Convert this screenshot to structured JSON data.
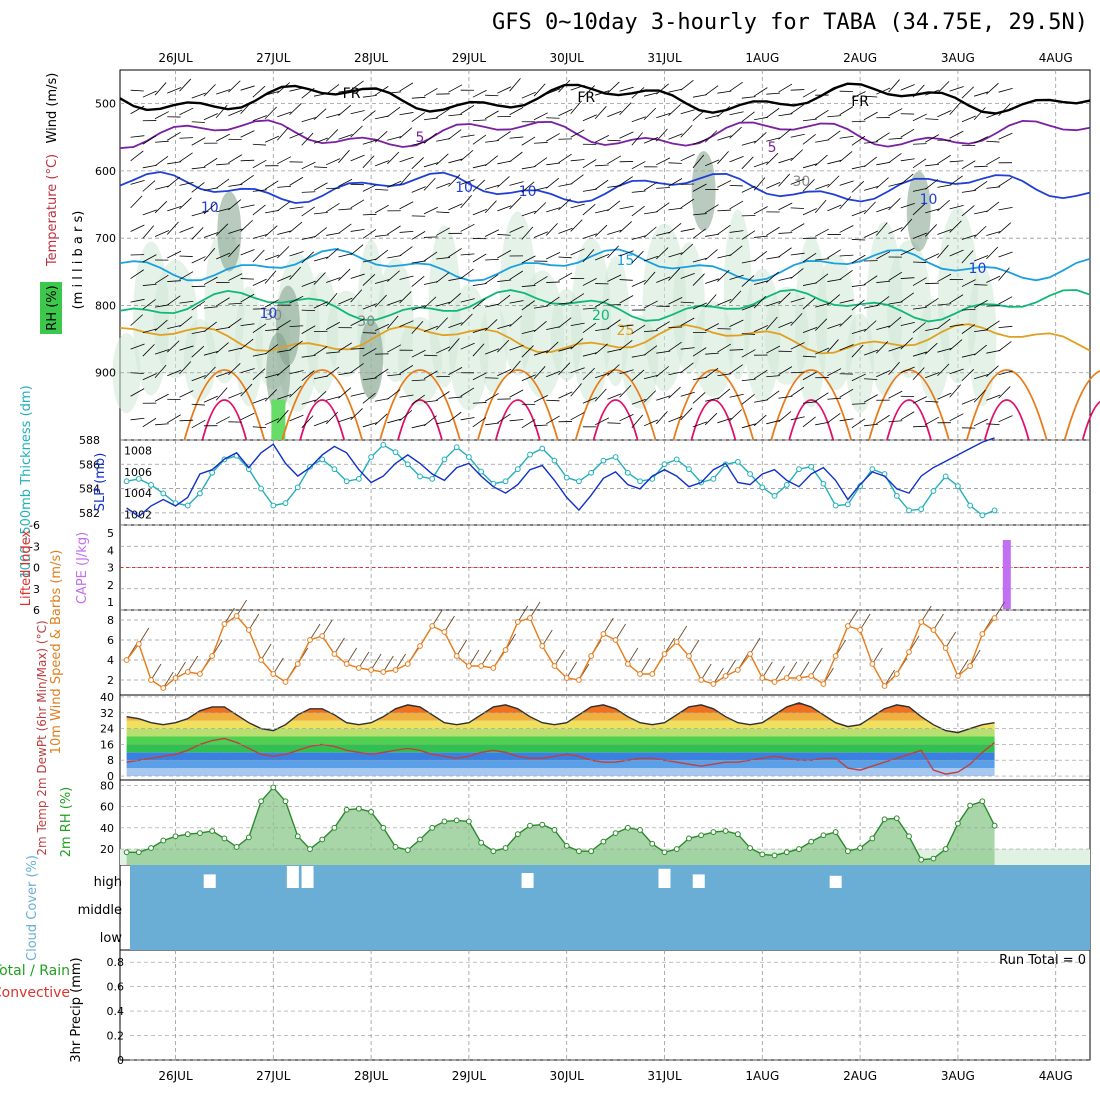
{
  "title": "GFS 0~10day 3-hourly for TABA (34.75E, 29.5N)",
  "dates": [
    "26JUL",
    "27JUL",
    "28JUL",
    "29JUL",
    "30JUL",
    "31JUL",
    "1AUG",
    "2AUG",
    "3AUG",
    "4AUG"
  ],
  "colors": {
    "wind_dark": "#000000",
    "purple": "#7a1fa2",
    "blue": "#1f3fd6",
    "cyan": "#1aa0e0",
    "green": "#10b878",
    "amber": "#e0a020",
    "orange": "#e87c1a",
    "magenta": "#e0106a",
    "thickness": "#22b0b8",
    "slp": "#1030c8",
    "cape": "#c070f0",
    "cloud": "#6aaed6",
    "rh2m": "#46c846"
  },
  "chart_data": [
    {
      "panel": "upper-air",
      "type": "contour",
      "ylabel_parts": {
        "wind": "Wind (m/s)",
        "temperature": "Temperature (°C)",
        "rh": "RH (%)",
        "axis": "(m i l l i b a r s)"
      },
      "yticks": [
        "500",
        "600",
        "700",
        "800",
        "900"
      ],
      "ylim": [
        1000,
        450
      ],
      "contour_labels": [
        "FR",
        "FR",
        "FR",
        "5",
        "5",
        "10",
        "10",
        "10",
        "15",
        "20",
        "25",
        "10",
        "30",
        "30",
        "30",
        "10",
        "10"
      ],
      "isotherms": [
        {
          "label": "FR",
          "level": 492
        },
        {
          "label": "5",
          "level": 545
        },
        {
          "label": "10",
          "level": 625
        },
        {
          "label": "15",
          "level": 740
        },
        {
          "label": "20",
          "level": 800
        },
        {
          "label": "25",
          "level": 850
        }
      ]
    },
    {
      "panel": "thickness-slp",
      "type": "line",
      "ylabel_left": "1000~500mb Thickness (dm)",
      "ylabel_right": "SLP (mb)",
      "yticks_left": [
        "588",
        "586",
        "584",
        "582"
      ],
      "yticks_right": [
        "1008",
        "1006",
        "1004",
        "1002"
      ],
      "ylim_left": [
        581,
        588
      ],
      "ylim_right": [
        1001,
        1009
      ],
      "series": [
        {
          "name": "1000~500mb Thickness (dm)",
          "values": [
            584.6,
            584.8,
            584.3,
            583.6,
            582.8,
            582.6,
            583.6,
            585.3,
            586.4,
            586.7,
            585.6,
            584.0,
            582.6,
            582.8,
            584.1,
            585.8,
            586.4,
            585.6,
            584.6,
            584.8,
            586.6,
            587.6,
            587.0,
            586.0,
            585.0,
            584.8,
            586.4,
            587.4,
            586.6,
            585.4,
            584.4,
            584.6,
            585.6,
            586.8,
            587.3,
            586.3,
            584.9,
            584.6,
            585.3,
            586.3,
            586.6,
            585.3,
            584.6,
            584.8,
            586.0,
            586.4,
            585.6,
            584.5,
            584.8,
            586.0,
            586.2,
            585.2,
            584.1,
            583.4,
            584.3,
            585.6,
            585.8,
            584.4,
            582.6,
            582.7,
            584.2,
            585.6,
            585.2,
            583.4,
            582.2,
            582.3,
            583.8,
            585.0,
            584.2,
            582.6,
            581.8,
            582.2
          ]
        },
        {
          "name": "SLP (mb)",
          "values": [
            1002.6,
            1001.8,
            1002.8,
            1003.4,
            1002.8,
            1003.6,
            1005.8,
            1006.2,
            1007.2,
            1007.8,
            1006.4,
            1007.8,
            1008.6,
            1006.8,
            1005.6,
            1006.4,
            1007.6,
            1008.4,
            1007.8,
            1006.2,
            1005.0,
            1005.6,
            1006.8,
            1007.6,
            1006.8,
            1005.8,
            1005.2,
            1006.4,
            1006.8,
            1005.6,
            1004.6,
            1004.0,
            1004.8,
            1006.2,
            1006.6,
            1005.2,
            1003.6,
            1002.4,
            1003.8,
            1005.4,
            1006.0,
            1004.8,
            1004.4,
            1005.6,
            1006.2,
            1005.6,
            1004.6,
            1005.0,
            1006.2,
            1006.8,
            1005.0,
            1004.8,
            1005.8,
            1006.2,
            1005.2,
            1004.6,
            1005.8,
            1006.4,
            1005.2,
            1003.4,
            1004.8,
            1006.0,
            1005.6,
            1004.4,
            1004.0,
            1005.6,
            1006.4,
            1007.0,
            1007.6,
            1008.2,
            1008.8,
            1009.2
          ]
        }
      ]
    },
    {
      "panel": "stability",
      "type": "bar",
      "ylabel_left": "Lifted Index",
      "ylabel_right": "CAPE (J/kg)",
      "yticks_left": [
        "-6",
        "-3",
        "0",
        "3",
        "6"
      ],
      "yticks_right": [
        "5",
        "4",
        "3",
        "2",
        "1"
      ],
      "ylim_left": [
        6,
        -6
      ],
      "cape_bars": [
        {
          "day": 8.5,
          "value": 5
        }
      ],
      "reference_line": 0
    },
    {
      "panel": "wind10m",
      "type": "line",
      "ylabel": "10m Wind Speed & Barbs (m/s)",
      "yticks": [
        "8",
        "6",
        "4",
        "2"
      ],
      "ylim": [
        0.5,
        9
      ],
      "series": [
        {
          "name": "10m Wind Speed",
          "values": [
            4.0,
            5.6,
            2.0,
            1.2,
            2.2,
            2.8,
            2.6,
            4.4,
            7.6,
            8.4,
            7.0,
            4.0,
            2.6,
            1.8,
            3.6,
            6.0,
            6.4,
            4.6,
            3.6,
            3.2,
            3.0,
            2.8,
            3.0,
            3.6,
            5.4,
            7.4,
            6.8,
            4.4,
            3.4,
            3.4,
            3.2,
            5.0,
            7.8,
            8.2,
            5.4,
            3.4,
            2.2,
            2.0,
            4.4,
            6.6,
            6.0,
            3.6,
            2.6,
            2.6,
            4.6,
            5.8,
            4.4,
            2.0,
            1.6,
            2.4,
            3.0,
            4.6,
            2.2,
            1.8,
            2.2,
            2.2,
            2.4,
            1.6,
            4.4,
            7.4,
            7.0,
            3.6,
            1.4,
            2.6,
            4.8,
            7.8,
            7.0,
            5.2,
            2.4,
            3.4,
            6.6,
            8.2
          ]
        }
      ]
    },
    {
      "panel": "temp2m",
      "type": "area",
      "ylabel": "2m Temp 2m DewPt (6hr Min/Max) (°C)",
      "yticks": [
        "40",
        "32",
        "24",
        "16",
        "8",
        "0"
      ],
      "ylim": [
        -2,
        41
      ],
      "series": [
        {
          "name": "2m Temp",
          "values": [
            30,
            29,
            27,
            26,
            27,
            29,
            33,
            35,
            35,
            31,
            27,
            24,
            23,
            26,
            31,
            34,
            34,
            31,
            27,
            26,
            27,
            30,
            34,
            36,
            35,
            31,
            27,
            26,
            27,
            31,
            35,
            36,
            34,
            30,
            27,
            26,
            27,
            31,
            35,
            36,
            34,
            30,
            27,
            26,
            27,
            31,
            35,
            36,
            34,
            30,
            27,
            26,
            27,
            31,
            35,
            37,
            35,
            31,
            27,
            25,
            26,
            30,
            34,
            36,
            35,
            30,
            26,
            23,
            22,
            24,
            26,
            27
          ]
        },
        {
          "name": "2m DewPt",
          "values": [
            7,
            8,
            9,
            10,
            11,
            13,
            16,
            18,
            19,
            17,
            14,
            11,
            10,
            11,
            13,
            15,
            16,
            15,
            13,
            12,
            11,
            12,
            13,
            14,
            13,
            11,
            10,
            9,
            10,
            12,
            13,
            12,
            10,
            9,
            9,
            10,
            11,
            10,
            8,
            7,
            7,
            8,
            9,
            9,
            8,
            7,
            6,
            5,
            6,
            7,
            7,
            8,
            9,
            10,
            9,
            8,
            8,
            9,
            9,
            4,
            3,
            5,
            7,
            9,
            11,
            13,
            3,
            1,
            2,
            6,
            12,
            17
          ]
        }
      ]
    },
    {
      "panel": "rh2m",
      "type": "area",
      "ylabel": "2m RH (%)",
      "yticks": [
        "80",
        "60",
        "40",
        "20"
      ],
      "ylim": [
        5,
        85
      ],
      "series": [
        {
          "name": "2m RH",
          "values": [
            17,
            17,
            21,
            28,
            32,
            34,
            35,
            37,
            30,
            22,
            31,
            65,
            78,
            65,
            32,
            20,
            29,
            40,
            57,
            58,
            55,
            40,
            22,
            19,
            29,
            40,
            46,
            47,
            46,
            26,
            18,
            21,
            34,
            42,
            43,
            38,
            23,
            18,
            18,
            27,
            35,
            40,
            38,
            25,
            17,
            20,
            30,
            33,
            36,
            37,
            34,
            21,
            15,
            14,
            17,
            20,
            27,
            33,
            36,
            18,
            21,
            30,
            48,
            49,
            32,
            10,
            11,
            20,
            44,
            61,
            65,
            42
          ]
        }
      ]
    },
    {
      "panel": "cloud",
      "type": "heatmap",
      "ylabel": "Cloud Cover (%)",
      "yticks": [
        "high",
        "middle",
        "low"
      ],
      "cells": [
        {
          "day": 0.35,
          "layer": "high",
          "value": 0.4
        },
        {
          "day": 1.2,
          "layer": "high",
          "value": 1.0
        },
        {
          "day": 1.35,
          "layer": "high",
          "value": 1.0
        },
        {
          "day": 3.6,
          "layer": "high",
          "value": 0.5
        },
        {
          "day": 5.0,
          "layer": "high",
          "value": 0.8
        },
        {
          "day": 5.35,
          "layer": "high",
          "value": 0.4
        },
        {
          "day": 6.75,
          "layer": "high",
          "value": 0.3
        }
      ]
    },
    {
      "panel": "precip",
      "type": "bar",
      "ylabel": "3hr Precip (mm)",
      "legend": [
        "Total / Rain",
        "Convective"
      ],
      "yticks": [
        "0.8",
        "0.6",
        "0.4",
        "0.2",
        "0"
      ],
      "ylim": [
        0,
        0.9
      ],
      "annotation": "Run Total = 0",
      "values": []
    }
  ]
}
